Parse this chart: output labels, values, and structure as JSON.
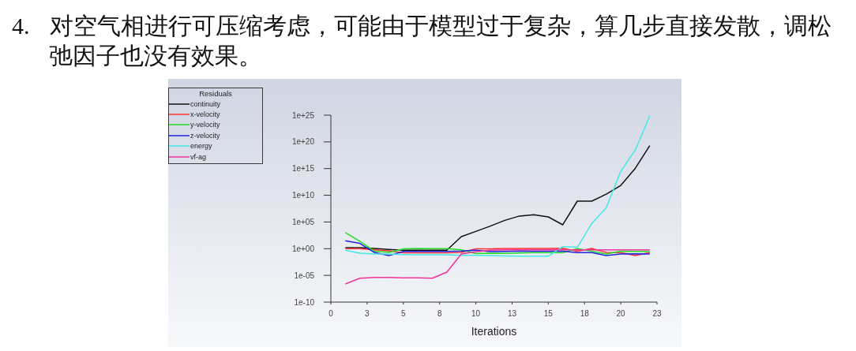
{
  "chart_data": {
    "type": "line",
    "title": "4. 对空气相进行可压缩考虑，可能由于模型过于复杂，算几步直接发散，调松弛因子也没有效果。",
    "xlabel": "Iterations",
    "legend_title": "Residuals",
    "legend": "top left",
    "log": true,
    "line_style": "solid",
    "x": [
      1,
      2,
      3,
      4,
      5,
      6,
      7,
      8,
      9,
      10,
      11,
      12,
      13,
      14,
      15,
      16,
      17,
      18,
      19,
      20,
      21,
      22
    ],
    "xlim": [
      0,
      22.5
    ],
    "xticks": [
      0,
      {
        "value": 2.5,
        "label": "3"
      },
      5,
      {
        "value": 7.5,
        "label": "8"
      },
      10,
      {
        "value": 12.5,
        "label": "13"
      },
      15,
      {
        "value": 17.5,
        "label": "18"
      },
      20,
      {
        "value": 22.5,
        "label": "23"
      }
    ],
    "ylim": [
      1e-10,
      1e+25
    ],
    "yticks": [
      {
        "value": 1e-10,
        "label": "1e-10"
      },
      {
        "value": 1e-05,
        "label": "1e-05"
      },
      {
        "value": 1,
        "label": "1e+00"
      },
      {
        "value": 100000.0,
        "label": "1e+05"
      },
      {
        "value": 10000000000.0,
        "label": "1e+10"
      },
      {
        "value": 1000000000000000.0,
        "label": "1e+15"
      },
      {
        "value": 1e+20,
        "label": "1e+20"
      },
      {
        "value": 1e+25,
        "label": "1e+25"
      }
    ],
    "series": [
      {
        "name": "continuity",
        "color": "#111111",
        "values": [
          1.6,
          1.6,
          1.1,
          0.7,
          0.5,
          0.5,
          0.5,
          0.5,
          180,
          1700,
          17000,
          200000.0,
          1300000.0,
          2200000.0,
          900000.0,
          30000.0,
          800000000.0,
          800000000.0,
          16000000000.0,
          700000000000.0,
          1100000000000000.0,
          2e+19
        ]
      },
      {
        "name": "x-velocity",
        "color": "#ff3333",
        "values": [
          1,
          1,
          0.6,
          0.4,
          0.17,
          0.17,
          0.17,
          0.17,
          0.2,
          0.9,
          0.9,
          1.1,
          1.1,
          1.1,
          1.1,
          1.2,
          0.33,
          1.1,
          0.2,
          0.18,
          0.05,
          0.18
        ]
      },
      {
        "name": "y-velocity",
        "color": "#22dd22",
        "values": [
          1000,
          25,
          0.35,
          0.2,
          0.9,
          1.1,
          1,
          1,
          0.6,
          0.12,
          0.14,
          0.13,
          0.16,
          0.18,
          0.18,
          0.18,
          1.05,
          0.33,
          0.1,
          0.33,
          0.3,
          0.3
        ]
      },
      {
        "name": "z-velocity",
        "color": "#2222dd",
        "values": [
          30,
          10,
          0.2,
          0.05,
          0.3,
          0.3,
          0.3,
          0.3,
          0.35,
          0.5,
          0.28,
          0.3,
          0.35,
          0.33,
          0.33,
          0.33,
          0.18,
          0.18,
          0.05,
          0.1,
          0.11,
          0.1
        ]
      },
      {
        "name": "energy",
        "color": "#44e8e8",
        "values": [
          0.5,
          0.14,
          0.1,
          0.1,
          0.08,
          0.07,
          0.07,
          0.07,
          0.055,
          0.055,
          0.05,
          0.045,
          0.04,
          0.04,
          0.04,
          2.5,
          1.8,
          50000.0,
          50000000.0,
          300000000000000.0,
          3e+18,
          7e+24
        ]
      },
      {
        "name": "vf-ag",
        "color": "#ee3399",
        "values": [
          2.5e-07,
          3e-06,
          4e-06,
          4e-06,
          3.5e-06,
          3.5e-06,
          3e-06,
          4e-05,
          0.1,
          0.25,
          0.5,
          0.6,
          0.6,
          0.6,
          0.6,
          0.6,
          0.6,
          0.6,
          0.6,
          0.6,
          0.6,
          0.6
        ]
      }
    ]
  }
}
